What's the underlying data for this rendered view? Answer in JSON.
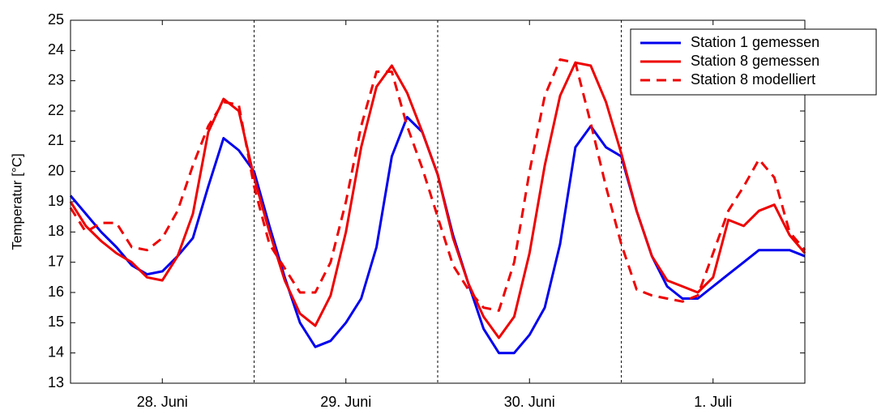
{
  "chart_data": {
    "type": "line",
    "y_label": "Temperatur [°C]",
    "x": [
      0,
      2,
      4,
      6,
      8,
      10,
      12,
      14,
      16,
      18,
      20,
      22,
      24,
      26,
      28,
      30,
      32,
      34,
      36,
      38,
      40,
      42,
      44,
      46,
      48,
      50,
      52,
      54,
      56,
      58,
      60,
      62,
      64,
      66,
      68,
      70,
      72,
      74,
      76,
      78,
      80,
      82,
      84,
      86,
      88,
      90,
      92,
      94,
      96
    ],
    "xlim": [
      0,
      96
    ],
    "xticks": [
      {
        "value": 12,
        "label": "28. Juni"
      },
      {
        "value": 36,
        "label": "29. Juni"
      },
      {
        "value": 60,
        "label": "30. Juni"
      },
      {
        "value": 84,
        "label": "1. Juli"
      }
    ],
    "vlines": [
      24,
      48,
      72
    ],
    "ylim": [
      13,
      25
    ],
    "yticks": [
      13,
      14,
      15,
      16,
      17,
      18,
      19,
      20,
      21,
      22,
      23,
      24,
      25
    ],
    "legend": "upper right",
    "series": [
      {
        "name": "Station 1 gemessen",
        "color": "#0000ee",
        "dash": false,
        "values": [
          19.2,
          18.6,
          18.0,
          17.5,
          16.9,
          16.6,
          16.7,
          17.2,
          17.8,
          19.5,
          21.1,
          20.7,
          20.0,
          18.2,
          16.5,
          15.0,
          14.2,
          14.4,
          15.0,
          15.8,
          17.5,
          20.5,
          21.8,
          21.3,
          19.9,
          17.9,
          16.3,
          14.8,
          14.0,
          14.0,
          14.6,
          15.5,
          17.6,
          20.8,
          21.5,
          20.8,
          20.5,
          18.7,
          17.2,
          16.2,
          15.8,
          15.8,
          16.2,
          16.6,
          17.0,
          17.4,
          17.4,
          17.4,
          17.2
        ]
      },
      {
        "name": "Station 8 gemessen",
        "color": "#ee0000",
        "dash": false,
        "values": [
          19.0,
          18.2,
          17.7,
          17.3,
          17.0,
          16.5,
          16.4,
          17.2,
          18.6,
          21.3,
          22.4,
          22.0,
          19.8,
          18.0,
          16.4,
          15.3,
          14.9,
          15.9,
          18.0,
          20.8,
          22.8,
          23.5,
          22.6,
          21.3,
          19.9,
          17.8,
          16.3,
          15.2,
          14.5,
          15.2,
          17.3,
          20.2,
          22.5,
          23.6,
          23.5,
          22.3,
          20.6,
          18.7,
          17.2,
          16.4,
          16.2,
          16.0,
          16.5,
          18.4,
          18.2,
          18.7,
          18.9,
          17.9,
          17.3
        ]
      },
      {
        "name": "Station 8 modelliert",
        "color": "#ee0000",
        "dash": true,
        "values": [
          18.8,
          18.0,
          18.3,
          18.3,
          17.5,
          17.4,
          17.8,
          18.7,
          20.2,
          21.5,
          22.3,
          22.2,
          19.5,
          17.6,
          16.8,
          16.0,
          16.0,
          17.0,
          19.0,
          21.5,
          23.3,
          23.3,
          21.5,
          20.1,
          18.5,
          16.9,
          16.1,
          15.5,
          15.4,
          17.0,
          20.0,
          22.5,
          23.7,
          23.6,
          21.6,
          19.5,
          17.6,
          16.1,
          15.9,
          15.8,
          15.7,
          15.9,
          17.3,
          18.7,
          19.5,
          20.4,
          19.8,
          18.0,
          17.4
        ]
      }
    ]
  }
}
